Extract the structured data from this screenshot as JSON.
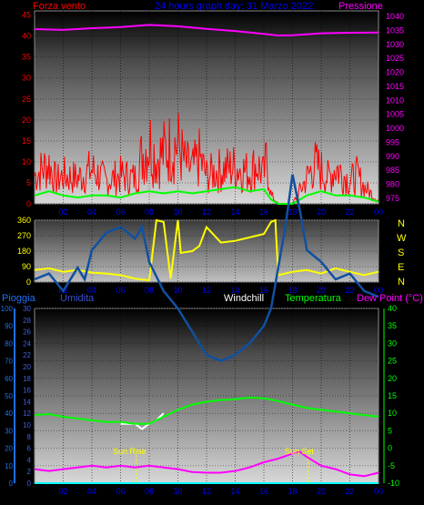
{
  "header": {
    "left_label": "Forza vento",
    "left_label_color": "#ff0000",
    "center_title": "24 hours graph day: 31 Marzo 2022",
    "center_color": "#0000ff",
    "right_label": "Pressione",
    "right_label_color": "#ff00ff"
  },
  "compass": {
    "letters": [
      "N",
      "W",
      "S",
      "E",
      "N"
    ],
    "color": "#ffff00"
  },
  "bottom_header": {
    "pioggia": "Pioggia",
    "pioggia_color": "#1e6ff0",
    "umidita": "Umidita",
    "umidita_color": "#3a4fd0",
    "windchill": "Windchill",
    "windchill_color": "#ffffff",
    "temperatura": "Temperatura",
    "temperatura_color": "#00ff00",
    "dewpoint": "Dew Point (°C)",
    "dewpoint_color": "#ff00ff"
  },
  "annotations": {
    "sun_rise": "Sun Rise",
    "sun_set": "Sun Set",
    "color": "#ffff00"
  },
  "chart_data": [
    {
      "type": "line",
      "title": "24 hours graph day: 31 Marzo 2022",
      "x_ticks": [
        "02",
        "04",
        "06",
        "08",
        "10",
        "12",
        "14",
        "16",
        "18",
        "20",
        "22",
        "00"
      ],
      "left_axis": {
        "label": "Forza vento",
        "ticks": [
          "0",
          "5",
          "10",
          "15",
          "20",
          "25",
          "30",
          "35",
          "40",
          "45"
        ],
        "range": [
          0,
          46
        ]
      },
      "right_axis": {
        "label": "Pressione",
        "ticks": [
          "975",
          "980",
          "985",
          "990",
          "995",
          "1000",
          "1005",
          "1010",
          "1015",
          "1020",
          "1025",
          "1030",
          "1035",
          "1040"
        ],
        "range": [
          973,
          1042
        ]
      },
      "series": [
        {
          "name": "Forza vento",
          "color": "#ff0000",
          "kind": "gust",
          "x": [
            0,
            1,
            1.5,
            2,
            3,
            4,
            5,
            6,
            7,
            7.5,
            8,
            8.5,
            9,
            9.5,
            10,
            10.5,
            11,
            11.5,
            12,
            13,
            14,
            15,
            15.5,
            16,
            16.2,
            16.5,
            17,
            18,
            19,
            19.5,
            20,
            20.5,
            21,
            22,
            22.5,
            23,
            24
          ],
          "y": [
            10,
            14,
            8,
            10,
            9,
            12,
            8,
            10,
            9,
            17,
            22,
            16,
            18,
            20,
            21,
            14,
            12,
            16,
            10,
            12,
            13,
            11,
            14,
            10,
            16,
            3,
            0,
            0,
            9,
            14,
            12,
            9,
            13,
            8,
            10,
            6,
            1
          ]
        },
        {
          "name": "Forza vento medio",
          "color": "#00ff00",
          "x": [
            0,
            1,
            2,
            3,
            4,
            5,
            6,
            7,
            8,
            9,
            10,
            11,
            12,
            13,
            14,
            15,
            16,
            16.5,
            17,
            18,
            19,
            20,
            21,
            22,
            23,
            24
          ],
          "y": [
            2,
            3,
            2,
            1.5,
            2,
            2,
            1.5,
            2.5,
            3,
            2.5,
            3,
            2.5,
            3,
            3.5,
            4,
            3,
            3.5,
            1,
            0,
            0,
            2,
            3,
            2,
            2,
            1.5,
            0.5
          ]
        },
        {
          "name": "Pressione",
          "color": "#ff00ff",
          "axis": "right",
          "x": [
            0,
            2,
            4,
            6,
            8,
            10,
            12,
            14,
            16,
            17,
            18,
            20,
            22,
            24
          ],
          "y": [
            1035.5,
            1035.2,
            1035.8,
            1036.2,
            1037.0,
            1036.5,
            1035.6,
            1034.8,
            1033.8,
            1033.2,
            1033.3,
            1034.0,
            1034.2,
            1034.3
          ]
        }
      ]
    },
    {
      "type": "line",
      "title": "",
      "x_ticks": [
        "02",
        "04",
        "06",
        "08",
        "10",
        "12",
        "14",
        "16",
        "18",
        "20",
        "22",
        "00"
      ],
      "left_axis": {
        "ticks": [
          "0",
          "90",
          "180",
          "270",
          "360"
        ],
        "range": [
          0,
          360
        ]
      },
      "right_axis": {
        "ticks": [
          "N",
          "W",
          "S",
          "E",
          "N"
        ]
      },
      "series": [
        {
          "name": "Direzione vento",
          "color": "#ffff00",
          "x": [
            0,
            1,
            2,
            3,
            4,
            5,
            6,
            7,
            8,
            8.5,
            9,
            9.5,
            10,
            10.2,
            11,
            11.5,
            12,
            13,
            14,
            15,
            16,
            16.5,
            16.8,
            17,
            18,
            19,
            20,
            21,
            22,
            23,
            24
          ],
          "y": [
            70,
            80,
            60,
            70,
            55,
            50,
            40,
            20,
            10,
            360,
            350,
            20,
            360,
            170,
            180,
            210,
            320,
            230,
            240,
            260,
            280,
            350,
            360,
            40,
            60,
            70,
            50,
            80,
            60,
            40,
            60
          ]
        }
      ]
    },
    {
      "type": "line",
      "title": "",
      "x_ticks": [
        "02",
        "04",
        "06",
        "08",
        "10",
        "12",
        "14",
        "16",
        "18",
        "20",
        "22",
        "00"
      ],
      "left_axes": [
        {
          "label": "Pioggia",
          "ticks": [
            "0",
            "10",
            "20",
            "30",
            "40",
            "50",
            "60",
            "70",
            "80",
            "90",
            "100"
          ],
          "range": [
            0,
            100
          ]
        },
        {
          "label": "Umidita",
          "ticks": [
            "0",
            "2",
            "4",
            "6",
            "8",
            "10",
            "12",
            "14",
            "16",
            "18",
            "20",
            "22",
            "24",
            "26",
            "28",
            "30"
          ],
          "range": [
            0,
            30
          ]
        }
      ],
      "right_axis": {
        "label": "Temperatura / Dew Point (°C)",
        "ticks": [
          "-10",
          "-5",
          "0",
          "5",
          "10",
          "15",
          "20",
          "25",
          "30",
          "35",
          "40"
        ],
        "range": [
          -10,
          40
        ]
      },
      "series": [
        {
          "name": "Umidita",
          "color": "#1050a0",
          "x": [
            0,
            1,
            2,
            3,
            3.5,
            4,
            5,
            6,
            7,
            7.5,
            8,
            9,
            10,
            11,
            12,
            13,
            14,
            15,
            16,
            16.5,
            17,
            17.5,
            18,
            18.5,
            19,
            20,
            21,
            22,
            23,
            24
          ],
          "y": [
            35,
            36,
            33,
            37,
            35,
            40,
            43,
            44,
            42,
            44,
            38,
            33,
            30,
            26,
            22,
            21,
            22,
            24,
            27,
            30,
            37,
            44,
            53,
            47,
            40,
            38,
            35,
            36,
            33,
            32
          ]
        },
        {
          "name": "Temperatura",
          "color": "#00ff00",
          "x": [
            0,
            1,
            2,
            3,
            4,
            5,
            6,
            7,
            8,
            9,
            10,
            11,
            12,
            13,
            14,
            15,
            16,
            17,
            18,
            19,
            20,
            21,
            22,
            23,
            24
          ],
          "y": [
            9.5,
            9.8,
            9,
            8.5,
            8,
            7.5,
            7.5,
            7,
            7,
            9,
            11,
            12.5,
            13.3,
            13.8,
            14,
            14.5,
            14.3,
            13.5,
            12.5,
            11.5,
            11,
            10.5,
            10,
            9.5,
            9
          ]
        },
        {
          "name": "Windchill",
          "color": "#ffffff",
          "x": [
            6,
            7,
            7.5,
            8,
            8.5,
            9
          ],
          "y": [
            7,
            7,
            5.5,
            7,
            8,
            10
          ]
        },
        {
          "name": "Dew Point",
          "color": "#ff00ff",
          "x": [
            0,
            1,
            2,
            3,
            4,
            5,
            6,
            7,
            8,
            9,
            10,
            11,
            12,
            13,
            14,
            15,
            16,
            17,
            18,
            18.5,
            19,
            20,
            21,
            22,
            23,
            24
          ],
          "y": [
            -6,
            -6.5,
            -6,
            -5.5,
            -5,
            -5.5,
            -5,
            -5.5,
            -5,
            -5.5,
            -6,
            -6.8,
            -7,
            -7,
            -6.5,
            -5.5,
            -4,
            -3,
            -1.5,
            -1,
            -2.5,
            -5,
            -6,
            -7.5,
            -8,
            -7
          ]
        },
        {
          "name": "Pioggia",
          "color": "#00ffff",
          "x": [
            0,
            24
          ],
          "y": [
            0,
            0
          ]
        }
      ],
      "markers": [
        {
          "label": "Sun Rise",
          "x": 7.1
        },
        {
          "label": "Sun Set",
          "x": 19.1
        }
      ]
    }
  ]
}
